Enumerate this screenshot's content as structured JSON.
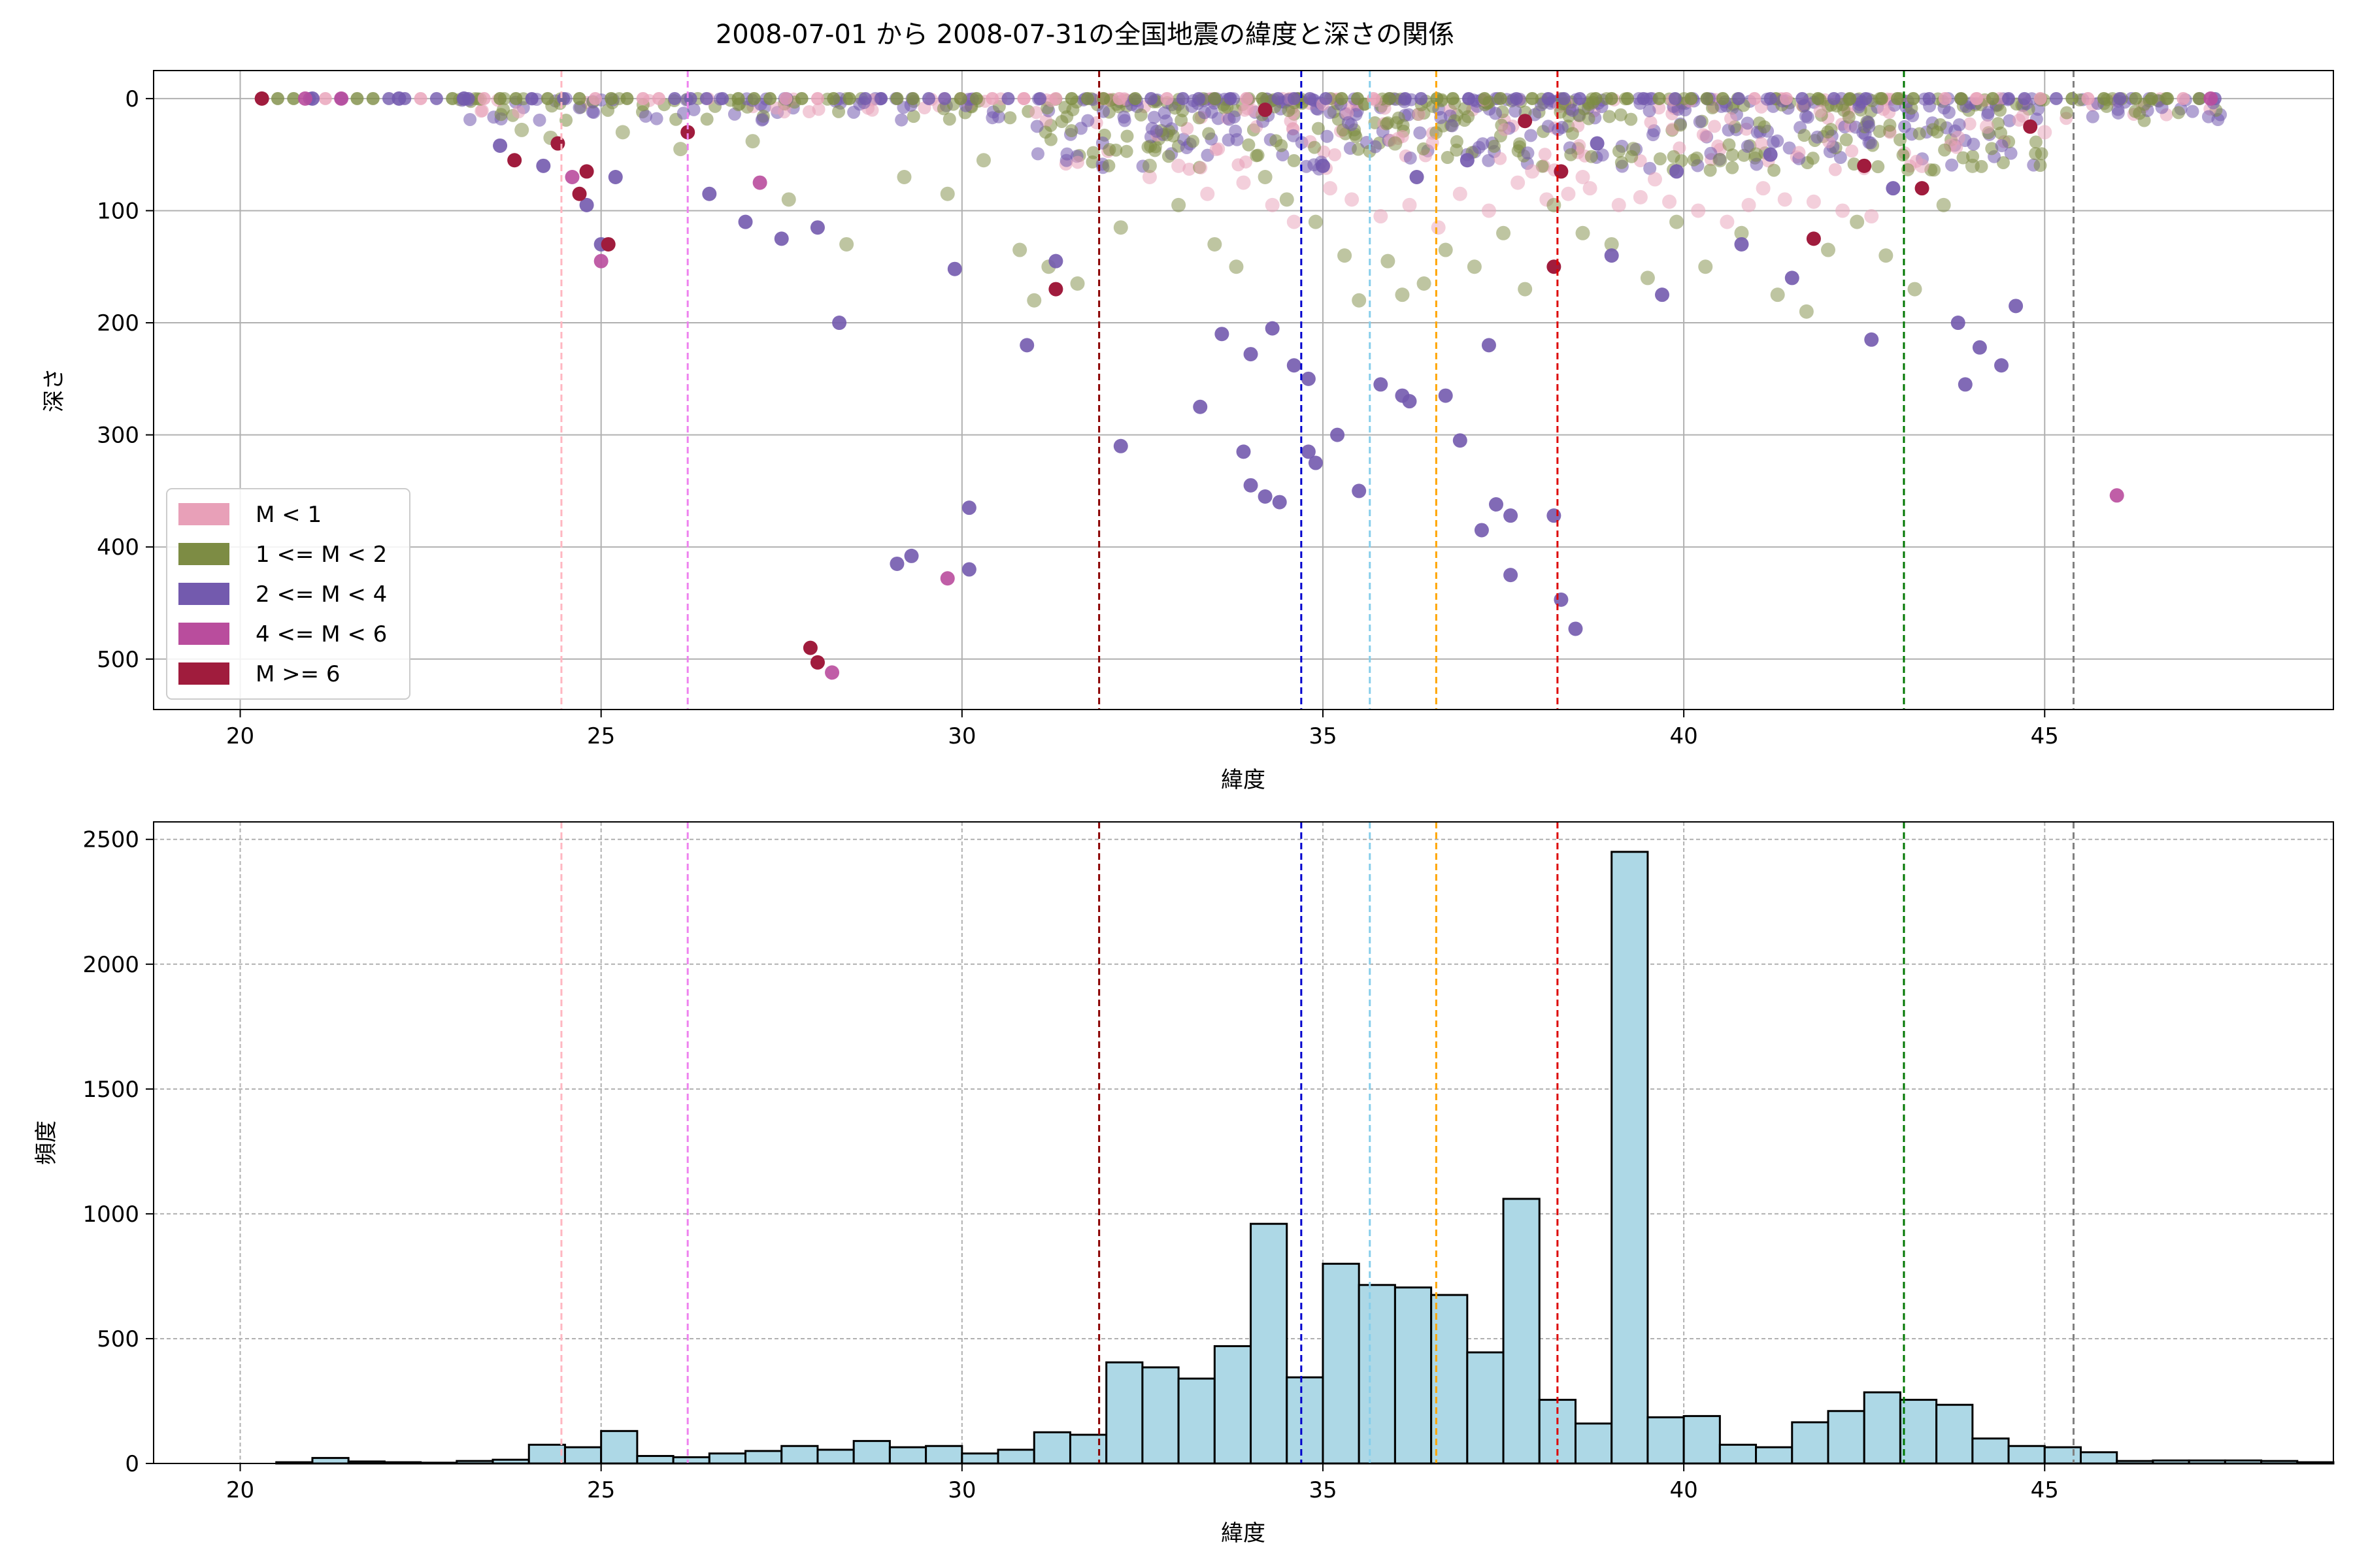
{
  "figure": {
    "title": "2008-07-01 から 2008-07-31の全国地震の緯度と深さの関係"
  },
  "chart_data": [
    {
      "type": "scatter",
      "xlabel": "緯度",
      "ylabel": "深さ",
      "xlim": [
        18.8,
        49.0
      ],
      "ylim": [
        545,
        -25
      ],
      "y_inverted": true,
      "xticks": [
        20,
        25,
        30,
        35,
        40,
        45
      ],
      "yticks": [
        0,
        100,
        200,
        300,
        400,
        500
      ],
      "grid": true,
      "legend": {
        "placement": "lower-left",
        "entries": [
          {
            "label": "M < 1",
            "color": "#e8a0b8"
          },
          {
            "label": "1 <= M < 2",
            "color": "#7d8c44"
          },
          {
            "label": "2 <= M < 4",
            "color": "#735aae"
          },
          {
            "label": "4 <= M < 6",
            "color": "#b94d9d"
          },
          {
            "label": "M >= 6",
            "color": "#a01c3d"
          }
        ]
      },
      "vlines": [
        {
          "x": 24.45,
          "color": "#ffb6c1"
        },
        {
          "x": 26.2,
          "color": "#ee82ee"
        },
        {
          "x": 31.9,
          "color": "#8b0000"
        },
        {
          "x": 34.7,
          "color": "#0000cd"
        },
        {
          "x": 35.65,
          "color": "#87ceeb"
        },
        {
          "x": 36.57,
          "color": "#ffa500"
        },
        {
          "x": 38.25,
          "color": "#dd0000"
        },
        {
          "x": 43.05,
          "color": "#007700"
        },
        {
          "x": 45.4,
          "color": "#808080"
        }
      ],
      "series": [
        {
          "category": 0,
          "color": "#e8a0b8",
          "opacity": 0.5,
          "points": [
            [
              32.6,
              70
            ],
            [
              33.0,
              60
            ],
            [
              33.4,
              85
            ],
            [
              33.9,
              75
            ],
            [
              34.3,
              95
            ],
            [
              34.6,
              110
            ],
            [
              35.1,
              80
            ],
            [
              35.4,
              90
            ],
            [
              35.8,
              105
            ],
            [
              36.2,
              95
            ],
            [
              36.6,
              115
            ],
            [
              36.9,
              85
            ],
            [
              37.3,
              100
            ],
            [
              37.7,
              75
            ],
            [
              38.1,
              90
            ],
            [
              38.4,
              85
            ],
            [
              38.7,
              80
            ],
            [
              39.1,
              95
            ],
            [
              39.4,
              88
            ],
            [
              39.8,
              92
            ],
            [
              40.2,
              100
            ],
            [
              40.6,
              110
            ],
            [
              41.1,
              80
            ],
            [
              41.4,
              90
            ],
            [
              41.8,
              92
            ],
            [
              42.2,
              100
            ],
            [
              42.6,
              105
            ],
            [
              43.3,
              60
            ],
            [
              43.8,
              35
            ],
            [
              44.2,
              25
            ],
            [
              45.0,
              30
            ],
            [
              37.9,
              65
            ],
            [
              38.6,
              70
            ],
            [
              39.6,
              72
            ],
            [
              40.9,
              95
            ]
          ]
        },
        {
          "category": 1,
          "color": "#7d8c44",
          "opacity": 0.5,
          "points": [
            [
              23.9,
              28
            ],
            [
              24.3,
              35
            ],
            [
              25.3,
              30
            ],
            [
              26.1,
              45
            ],
            [
              27.1,
              38
            ],
            [
              27.6,
              90
            ],
            [
              28.4,
              130
            ],
            [
              29.2,
              70
            ],
            [
              29.8,
              85
            ],
            [
              30.3,
              55
            ],
            [
              30.8,
              135
            ],
            [
              31.2,
              150
            ],
            [
              31.6,
              165
            ],
            [
              31.0,
              180
            ],
            [
              32.2,
              115
            ],
            [
              32.6,
              60
            ],
            [
              33.0,
              95
            ],
            [
              33.5,
              130
            ],
            [
              33.8,
              150
            ],
            [
              34.2,
              70
            ],
            [
              34.5,
              90
            ],
            [
              34.9,
              110
            ],
            [
              35.3,
              140
            ],
            [
              35.5,
              180
            ],
            [
              35.9,
              145
            ],
            [
              36.1,
              175
            ],
            [
              36.4,
              165
            ],
            [
              36.7,
              135
            ],
            [
              37.1,
              150
            ],
            [
              37.5,
              120
            ],
            [
              37.8,
              170
            ],
            [
              38.2,
              95
            ],
            [
              38.6,
              120
            ],
            [
              39.0,
              130
            ],
            [
              39.5,
              160
            ],
            [
              39.9,
              110
            ],
            [
              40.3,
              150
            ],
            [
              40.8,
              120
            ],
            [
              41.3,
              175
            ],
            [
              41.7,
              190
            ],
            [
              42.0,
              135
            ],
            [
              42.4,
              110
            ],
            [
              42.8,
              140
            ],
            [
              43.2,
              170
            ],
            [
              43.6,
              95
            ],
            [
              44.0,
              60
            ],
            [
              39.3,
              45
            ],
            [
              40.5,
              55
            ],
            [
              41.0,
              50
            ],
            [
              36.0,
              40
            ]
          ]
        },
        {
          "category": 2,
          "color": "#735aae",
          "opacity": 0.9,
          "points": [
            [
              21.0,
              0
            ],
            [
              22.2,
              0
            ],
            [
              23.1,
              0
            ],
            [
              23.6,
              42
            ],
            [
              24.2,
              60
            ],
            [
              24.8,
              95
            ],
            [
              25.0,
              130
            ],
            [
              25.2,
              70
            ],
            [
              26.5,
              85
            ],
            [
              27.0,
              110
            ],
            [
              27.5,
              125
            ],
            [
              28.0,
              115
            ],
            [
              28.3,
              200
            ],
            [
              29.1,
              415
            ],
            [
              29.3,
              408
            ],
            [
              30.1,
              365
            ],
            [
              30.1,
              420
            ],
            [
              29.9,
              152
            ],
            [
              30.9,
              220
            ],
            [
              31.3,
              145
            ],
            [
              32.2,
              310
            ],
            [
              33.3,
              275
            ],
            [
              33.6,
              210
            ],
            [
              33.9,
              315
            ],
            [
              34.0,
              228
            ],
            [
              34.0,
              345
            ],
            [
              34.2,
              355
            ],
            [
              34.3,
              205
            ],
            [
              34.4,
              360
            ],
            [
              34.6,
              238
            ],
            [
              34.8,
              250
            ],
            [
              34.8,
              315
            ],
            [
              34.9,
              325
            ],
            [
              35.2,
              300
            ],
            [
              35.5,
              350
            ],
            [
              35.8,
              255
            ],
            [
              36.1,
              265
            ],
            [
              36.2,
              270
            ],
            [
              36.7,
              265
            ],
            [
              36.9,
              305
            ],
            [
              37.3,
              220
            ],
            [
              37.2,
              385
            ],
            [
              37.4,
              362
            ],
            [
              37.6,
              372
            ],
            [
              37.6,
              425
            ],
            [
              38.3,
              447
            ],
            [
              38.5,
              473
            ],
            [
              38.2,
              372
            ],
            [
              39.0,
              140
            ],
            [
              39.7,
              175
            ],
            [
              40.8,
              130
            ],
            [
              41.5,
              160
            ],
            [
              42.6,
              215
            ],
            [
              43.8,
              200
            ],
            [
              44.1,
              222
            ],
            [
              44.4,
              238
            ],
            [
              43.9,
              255
            ],
            [
              44.6,
              185
            ],
            [
              35.0,
              60
            ],
            [
              36.3,
              70
            ],
            [
              37.0,
              55
            ],
            [
              38.8,
              40
            ],
            [
              39.9,
              65
            ],
            [
              41.2,
              50
            ],
            [
              42.9,
              80
            ]
          ]
        },
        {
          "category": 3,
          "color": "#b94d9d",
          "opacity": 0.9,
          "points": [
            [
              20.9,
              0
            ],
            [
              21.4,
              0
            ],
            [
              24.6,
              70
            ],
            [
              25.0,
              145
            ],
            [
              27.2,
              75
            ],
            [
              28.2,
              512
            ],
            [
              29.8,
              428
            ],
            [
              46.0,
              354
            ],
            [
              47.3,
              0
            ]
          ]
        },
        {
          "category": 4,
          "color": "#a01c3d",
          "opacity": 1.0,
          "points": [
            [
              20.3,
              0
            ],
            [
              23.8,
              55
            ],
            [
              24.4,
              40
            ],
            [
              24.8,
              65
            ],
            [
              24.7,
              85
            ],
            [
              25.1,
              130
            ],
            [
              26.2,
              30
            ],
            [
              27.9,
              490
            ],
            [
              28.0,
              503
            ],
            [
              31.3,
              170
            ],
            [
              38.3,
              65
            ],
            [
              38.2,
              150
            ],
            [
              41.8,
              125
            ],
            [
              43.3,
              80
            ],
            [
              44.8,
              25
            ],
            [
              34.2,
              10
            ],
            [
              37.8,
              20
            ],
            [
              42.5,
              60
            ]
          ]
        }
      ],
      "surface_band": {
        "x_range": [
          23.0,
          47.5
        ],
        "depth_range": [
          0,
          40
        ]
      }
    },
    {
      "type": "bar",
      "subtype": "histogram",
      "xlabel": "緯度",
      "ylabel": "頻度",
      "xlim": [
        18.8,
        49.0
      ],
      "ylim": [
        0,
        2570
      ],
      "xticks": [
        20,
        25,
        30,
        35,
        40,
        45
      ],
      "yticks": [
        0,
        500,
        1000,
        1500,
        2000,
        2500
      ],
      "grid": true,
      "bar_color": "#add8e6",
      "bin_start": 20.0,
      "bin_width": 0.5,
      "values": [
        0,
        5,
        22,
        8,
        5,
        3,
        10,
        15,
        75,
        65,
        130,
        30,
        25,
        40,
        50,
        70,
        55,
        90,
        65,
        70,
        40,
        55,
        125,
        115,
        405,
        385,
        340,
        470,
        960,
        345,
        800,
        715,
        705,
        675,
        445,
        1060,
        255,
        160,
        2450,
        185,
        190,
        75,
        65,
        165,
        210,
        285,
        255,
        235,
        100,
        70,
        65,
        45,
        10,
        12,
        12,
        12,
        10,
        5
      ]
    }
  ]
}
